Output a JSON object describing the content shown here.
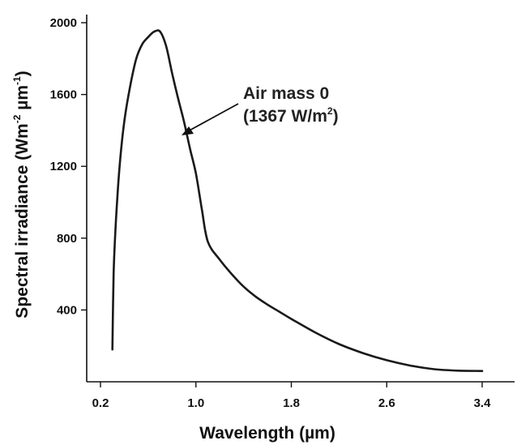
{
  "chart_data": {
    "type": "line",
    "title": "",
    "xlabel": {
      "main": "Wavelength",
      "unit": "(µm)"
    },
    "ylabel": {
      "main": "Spectral irradiance",
      "unit_base": "(Wm",
      "unit_exp1": "-2",
      "unit_mid": " µm",
      "unit_exp2": "-1",
      "unit_end": ")"
    },
    "x_ticks": [
      "0.2",
      "1.0",
      "1.8",
      "2.6",
      "3.4"
    ],
    "y_ticks": [
      "400",
      "800",
      "1200",
      "1600",
      "2000"
    ],
    "xlim": [
      0.2,
      3.8
    ],
    "ylim": [
      0,
      2000
    ],
    "grid": false,
    "annotation": {
      "line1": "Air mass 0",
      "line2_base": "(1367 W/m",
      "line2_exp": "2",
      "line2_end": ")",
      "arrow_target": {
        "x": 1.0,
        "y": 1380
      }
    },
    "series": [
      {
        "color": "#1a1a1a",
        "points": [
          [
            0.3,
            180
          ],
          [
            0.31,
            600
          ],
          [
            0.33,
            900
          ],
          [
            0.36,
            1200
          ],
          [
            0.4,
            1450
          ],
          [
            0.45,
            1650
          ],
          [
            0.5,
            1800
          ],
          [
            0.55,
            1880
          ],
          [
            0.6,
            1920
          ],
          [
            0.65,
            1950
          ],
          [
            0.7,
            1950
          ],
          [
            0.75,
            1870
          ],
          [
            0.8,
            1720
          ],
          [
            0.85,
            1580
          ],
          [
            0.9,
            1450
          ],
          [
            0.95,
            1300
          ],
          [
            1.0,
            1160
          ],
          [
            1.05,
            960
          ],
          [
            1.1,
            780
          ],
          [
            1.2,
            680
          ],
          [
            1.3,
            600
          ],
          [
            1.4,
            530
          ],
          [
            1.5,
            475
          ],
          [
            1.6,
            430
          ],
          [
            1.7,
            390
          ],
          [
            1.8,
            350
          ],
          [
            2.0,
            275
          ],
          [
            2.2,
            210
          ],
          [
            2.4,
            160
          ],
          [
            2.6,
            120
          ],
          [
            2.8,
            90
          ],
          [
            3.0,
            70
          ],
          [
            3.2,
            62
          ],
          [
            3.4,
            60
          ]
        ]
      }
    ]
  }
}
